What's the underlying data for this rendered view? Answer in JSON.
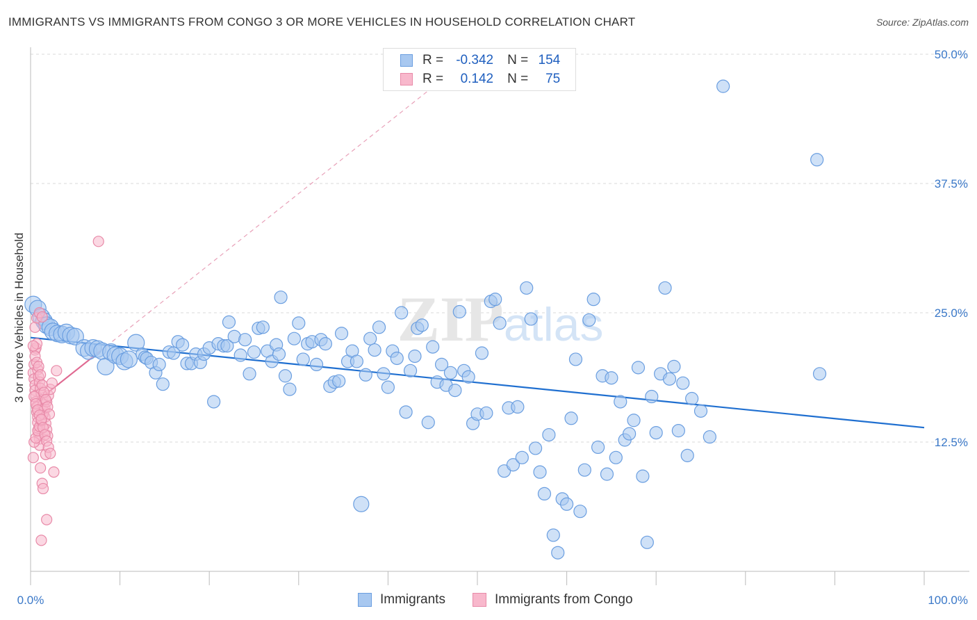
{
  "title": "IMMIGRANTS VS IMMIGRANTS FROM CONGO 3 OR MORE VEHICLES IN HOUSEHOLD CORRELATION CHART",
  "source": "Source: ZipAtlas.com",
  "watermark": "ZIPatlas",
  "legend": {
    "rows": [
      {
        "r_label": "R =",
        "r_value": "-0.342",
        "n_label": "N =",
        "n_value": "154",
        "color": "#a8c8f0",
        "border": "#6a9ee0"
      },
      {
        "r_label": "R =",
        "r_value": "0.142",
        "n_label": "N =",
        "n_value": "75",
        "color": "#f8b8cc",
        "border": "#e88aa8"
      }
    ]
  },
  "bottom_legend": [
    {
      "label": "Immigrants",
      "color": "#a8c8f0",
      "border": "#6a9ee0"
    },
    {
      "label": "Immigrants from Congo",
      "color": "#f8b8cc",
      "border": "#e88aa8"
    }
  ],
  "chart_data": {
    "type": "scatter",
    "xlabel": "",
    "ylabel": "3 or more Vehicles in Household",
    "xlim": [
      0,
      100
    ],
    "ylim": [
      0,
      50
    ],
    "x_tick_labels": [
      "0.0%",
      "100.0%"
    ],
    "y_ticks": [
      12.5,
      25.0,
      37.5,
      50.0
    ],
    "y_tick_labels": [
      "12.5%",
      "25.0%",
      "37.5%",
      "50.0%"
    ],
    "grid": true,
    "series": [
      {
        "name": "Immigrants",
        "color": "#6a9ee0",
        "fill": "#a8c8f0",
        "trend": {
          "x": [
            0,
            100
          ],
          "y": [
            22.6,
            13.9
          ],
          "style": "solid",
          "color": "#1f6fd0"
        },
        "points": [
          [
            0.3,
            25.8
          ],
          [
            0.8,
            25.4
          ],
          [
            1.2,
            24.6
          ],
          [
            1.5,
            24.2
          ],
          [
            1.8,
            23.8
          ],
          [
            2.2,
            23.6
          ],
          [
            2.5,
            23.2
          ],
          [
            3.0,
            23.0
          ],
          [
            3.5,
            22.9
          ],
          [
            4.0,
            23.1
          ],
          [
            4.5,
            22.8
          ],
          [
            5.0,
            22.7
          ],
          [
            6.0,
            21.6
          ],
          [
            6.5,
            21.3
          ],
          [
            7.0,
            21.6
          ],
          [
            7.5,
            21.5
          ],
          [
            8.0,
            21.3
          ],
          [
            8.4,
            19.8
          ],
          [
            9.0,
            21.2
          ],
          [
            9.5,
            20.9
          ],
          [
            10.0,
            20.8
          ],
          [
            10.5,
            20.3
          ],
          [
            11.0,
            20.5
          ],
          [
            11.8,
            22.1
          ],
          [
            12.5,
            21.0
          ],
          [
            12.8,
            20.7
          ],
          [
            13.0,
            20.6
          ],
          [
            13.5,
            20.2
          ],
          [
            14.0,
            19.2
          ],
          [
            14.4,
            20.0
          ],
          [
            14.8,
            18.1
          ],
          [
            15.5,
            21.2
          ],
          [
            16.0,
            21.1
          ],
          [
            16.5,
            22.2
          ],
          [
            17.0,
            21.9
          ],
          [
            17.5,
            20.1
          ],
          [
            18.0,
            20.1
          ],
          [
            18.5,
            21.0
          ],
          [
            19.0,
            20.2
          ],
          [
            19.4,
            21.0
          ],
          [
            20.0,
            21.6
          ],
          [
            20.5,
            16.4
          ],
          [
            21.0,
            22.0
          ],
          [
            21.6,
            21.8
          ],
          [
            22.0,
            21.8
          ],
          [
            22.2,
            24.1
          ],
          [
            22.8,
            22.7
          ],
          [
            23.5,
            20.9
          ],
          [
            24.0,
            22.4
          ],
          [
            24.5,
            19.1
          ],
          [
            25.0,
            21.2
          ],
          [
            25.5,
            23.5
          ],
          [
            26.0,
            23.6
          ],
          [
            26.5,
            21.3
          ],
          [
            27.0,
            20.3
          ],
          [
            27.5,
            21.9
          ],
          [
            27.8,
            21.0
          ],
          [
            28.0,
            26.5
          ],
          [
            28.5,
            18.9
          ],
          [
            29.0,
            17.6
          ],
          [
            29.5,
            22.5
          ],
          [
            30.0,
            24.0
          ],
          [
            30.5,
            20.5
          ],
          [
            31.0,
            22.0
          ],
          [
            31.5,
            22.2
          ],
          [
            32.0,
            20.0
          ],
          [
            32.5,
            22.4
          ],
          [
            33.0,
            22.0
          ],
          [
            33.5,
            17.9
          ],
          [
            34.0,
            18.3
          ],
          [
            34.5,
            18.4
          ],
          [
            34.8,
            23.0
          ],
          [
            35.5,
            20.3
          ],
          [
            36.0,
            21.3
          ],
          [
            36.5,
            20.3
          ],
          [
            37.0,
            6.5
          ],
          [
            37.5,
            19.0
          ],
          [
            38.0,
            22.5
          ],
          [
            38.5,
            21.4
          ],
          [
            39.0,
            23.6
          ],
          [
            39.5,
            19.1
          ],
          [
            40.0,
            17.8
          ],
          [
            40.5,
            21.3
          ],
          [
            41.0,
            20.6
          ],
          [
            41.5,
            25.0
          ],
          [
            42.0,
            15.4
          ],
          [
            42.5,
            19.4
          ],
          [
            43.0,
            20.8
          ],
          [
            43.3,
            23.5
          ],
          [
            43.8,
            23.8
          ],
          [
            44.5,
            14.4
          ],
          [
            45.0,
            21.7
          ],
          [
            45.5,
            18.3
          ],
          [
            46.0,
            20.0
          ],
          [
            46.5,
            18.0
          ],
          [
            47.0,
            19.2
          ],
          [
            47.5,
            17.5
          ],
          [
            48.0,
            25.1
          ],
          [
            48.5,
            19.4
          ],
          [
            49.0,
            18.8
          ],
          [
            49.5,
            14.3
          ],
          [
            50.0,
            15.2
          ],
          [
            50.5,
            21.1
          ],
          [
            51.0,
            15.3
          ],
          [
            51.5,
            26.1
          ],
          [
            52.0,
            26.3
          ],
          [
            52.5,
            24.0
          ],
          [
            53.0,
            9.7
          ],
          [
            53.5,
            15.8
          ],
          [
            54.0,
            10.3
          ],
          [
            54.5,
            15.9
          ],
          [
            55.0,
            11.0
          ],
          [
            55.5,
            27.4
          ],
          [
            56.0,
            24.4
          ],
          [
            56.5,
            11.9
          ],
          [
            57.0,
            9.6
          ],
          [
            57.5,
            7.5
          ],
          [
            58.0,
            13.2
          ],
          [
            58.5,
            3.5
          ],
          [
            59.0,
            1.8
          ],
          [
            59.5,
            7.0
          ],
          [
            60.0,
            6.5
          ],
          [
            60.5,
            14.8
          ],
          [
            61.0,
            20.5
          ],
          [
            61.5,
            5.8
          ],
          [
            62.0,
            9.8
          ],
          [
            62.5,
            24.3
          ],
          [
            63.0,
            26.3
          ],
          [
            63.5,
            12.0
          ],
          [
            64.0,
            18.9
          ],
          [
            64.5,
            9.4
          ],
          [
            65.0,
            18.7
          ],
          [
            65.5,
            11.0
          ],
          [
            66.0,
            16.4
          ],
          [
            66.5,
            12.7
          ],
          [
            67.0,
            13.3
          ],
          [
            67.5,
            14.6
          ],
          [
            68.0,
            19.7
          ],
          [
            68.5,
            9.2
          ],
          [
            69.0,
            2.8
          ],
          [
            69.5,
            16.9
          ],
          [
            70.0,
            13.4
          ],
          [
            70.5,
            19.1
          ],
          [
            71.0,
            27.4
          ],
          [
            71.5,
            18.6
          ],
          [
            72.0,
            19.8
          ],
          [
            72.5,
            13.6
          ],
          [
            73.0,
            18.2
          ],
          [
            73.5,
            11.2
          ],
          [
            74.0,
            16.7
          ],
          [
            75.0,
            15.5
          ],
          [
            76.0,
            13.0
          ],
          [
            77.5,
            46.9
          ],
          [
            88.0,
            39.8
          ],
          [
            88.3,
            19.1
          ]
        ]
      },
      {
        "name": "Immigrants from Congo",
        "color": "#e88aa8",
        "fill": "#f8b8cc",
        "trend_solid": {
          "x": [
            0.2,
            7.8
          ],
          "y": [
            16.1,
            21.3
          ],
          "style": "solid",
          "color": "#e06a92"
        },
        "trend_dashed": {
          "x": [
            7.8,
            46.0
          ],
          "y": [
            21.3,
            47.5
          ],
          "style": "dashed",
          "color": "#e8a0b8"
        },
        "points": [
          [
            0.3,
            19.2
          ],
          [
            0.4,
            18.6
          ],
          [
            0.5,
            18.0
          ],
          [
            0.5,
            17.5
          ],
          [
            0.6,
            17.0
          ],
          [
            0.6,
            16.4
          ],
          [
            0.7,
            15.9
          ],
          [
            0.7,
            15.4
          ],
          [
            0.8,
            14.9
          ],
          [
            0.8,
            14.4
          ],
          [
            0.9,
            13.8
          ],
          [
            0.9,
            13.3
          ],
          [
            1.0,
            12.8
          ],
          [
            1.0,
            12.2
          ],
          [
            0.4,
            20.0
          ],
          [
            0.5,
            21.4
          ],
          [
            0.6,
            21.6
          ],
          [
            0.7,
            22.0
          ],
          [
            0.8,
            19.5
          ],
          [
            0.9,
            18.8
          ],
          [
            1.0,
            18.3
          ],
          [
            1.1,
            17.7
          ],
          [
            1.2,
            17.2
          ],
          [
            1.3,
            16.6
          ],
          [
            1.4,
            16.1
          ],
          [
            1.5,
            15.5
          ],
          [
            1.6,
            14.9
          ],
          [
            1.7,
            14.3
          ],
          [
            1.8,
            13.7
          ],
          [
            1.9,
            13.1
          ],
          [
            0.3,
            11.0
          ],
          [
            0.4,
            12.5
          ],
          [
            0.6,
            12.9
          ],
          [
            0.8,
            13.6
          ],
          [
            1.0,
            14.0
          ],
          [
            1.2,
            14.6
          ],
          [
            1.4,
            15.2
          ],
          [
            1.6,
            15.8
          ],
          [
            1.8,
            16.4
          ],
          [
            2.0,
            17.0
          ],
          [
            2.2,
            17.6
          ],
          [
            2.4,
            18.2
          ],
          [
            0.5,
            23.6
          ],
          [
            0.7,
            24.5
          ],
          [
            1.0,
            25.0
          ],
          [
            1.3,
            24.6
          ],
          [
            1.1,
            10.0
          ],
          [
            1.3,
            8.5
          ],
          [
            1.4,
            8.0
          ],
          [
            1.7,
            11.3
          ],
          [
            2.6,
            9.6
          ],
          [
            2.9,
            19.4
          ],
          [
            1.2,
            3.0
          ],
          [
            1.8,
            5.0
          ],
          [
            7.6,
            31.9
          ],
          [
            0.3,
            21.8
          ],
          [
            0.5,
            20.8
          ],
          [
            0.7,
            20.2
          ],
          [
            0.9,
            19.8
          ],
          [
            1.1,
            19.0
          ],
          [
            1.3,
            18.0
          ],
          [
            1.5,
            17.3
          ],
          [
            1.7,
            16.6
          ],
          [
            1.9,
            15.9
          ],
          [
            2.1,
            15.2
          ],
          [
            0.4,
            16.9
          ],
          [
            0.6,
            16.2
          ],
          [
            0.8,
            15.6
          ],
          [
            1.0,
            15.1
          ],
          [
            1.2,
            14.7
          ],
          [
            1.4,
            13.9
          ],
          [
            1.6,
            13.2
          ],
          [
            1.8,
            12.6
          ],
          [
            2.0,
            12.0
          ],
          [
            2.2,
            11.4
          ]
        ]
      }
    ]
  }
}
